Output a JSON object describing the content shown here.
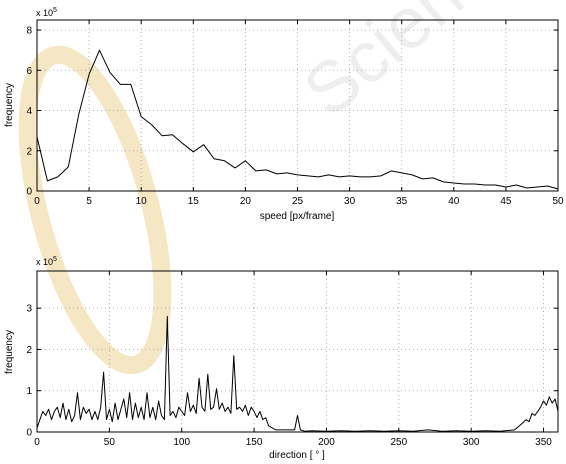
{
  "figure": {
    "background": "#ffffff",
    "line_color": "#000000",
    "grid_color": "#b0b0b0"
  },
  "chart_data": [
    {
      "type": "line",
      "xlabel": "speed [px/frame]",
      "ylabel": "frequency",
      "y_exponent_label": "x 10",
      "y_exponent_power": "5",
      "xlim": [
        0,
        50
      ],
      "ylim": [
        0,
        8.5
      ],
      "xticks": [
        0,
        5,
        10,
        15,
        20,
        25,
        30,
        35,
        40,
        45,
        50
      ],
      "yticks": [
        0,
        2,
        4,
        6,
        8
      ],
      "grid": true,
      "series": [
        {
          "x": [
            0,
            1,
            2,
            3,
            4,
            5,
            6,
            7,
            8,
            9,
            10,
            11,
            12,
            13,
            14,
            15,
            16,
            17,
            18,
            19,
            20,
            21,
            22,
            23,
            24,
            25,
            26,
            27,
            28,
            29,
            30,
            31,
            32,
            33,
            34,
            35,
            36,
            37,
            38,
            39,
            40,
            41,
            42,
            43,
            44,
            45,
            46,
            47,
            48,
            49,
            50
          ],
          "y": [
            2.7,
            0.5,
            0.7,
            1.2,
            3.8,
            5.8,
            7.0,
            5.9,
            5.3,
            5.3,
            3.7,
            3.3,
            2.75,
            2.8,
            2.35,
            1.95,
            2.3,
            1.6,
            1.5,
            1.15,
            1.5,
            1.0,
            1.05,
            0.85,
            0.9,
            0.8,
            0.75,
            0.7,
            0.8,
            0.7,
            0.75,
            0.7,
            0.7,
            0.75,
            1.0,
            0.9,
            0.8,
            0.6,
            0.65,
            0.45,
            0.4,
            0.35,
            0.35,
            0.3,
            0.3,
            0.2,
            0.3,
            0.15,
            0.2,
            0.25,
            0.1
          ]
        }
      ]
    },
    {
      "type": "line",
      "xlabel": "direction [ ° ]",
      "ylabel": "frequency",
      "y_exponent_label": "x 10",
      "y_exponent_power": "5",
      "xlim": [
        0,
        360
      ],
      "ylim": [
        0,
        3.9
      ],
      "xticks": [
        0,
        50,
        100,
        150,
        200,
        250,
        300,
        350
      ],
      "yticks": [
        0,
        1,
        2,
        3
      ],
      "grid": true,
      "series": [
        {
          "x": [
            0,
            2,
            4,
            6,
            8,
            10,
            12,
            14,
            16,
            18,
            20,
            22,
            24,
            26,
            28,
            30,
            32,
            34,
            36,
            38,
            40,
            42,
            44,
            46,
            48,
            50,
            52,
            54,
            56,
            58,
            60,
            62,
            64,
            66,
            68,
            70,
            72,
            74,
            76,
            78,
            80,
            82,
            84,
            86,
            88,
            90,
            92,
            94,
            96,
            98,
            100,
            102,
            104,
            106,
            108,
            110,
            112,
            114,
            116,
            118,
            120,
            122,
            124,
            126,
            128,
            130,
            132,
            134,
            136,
            138,
            140,
            142,
            144,
            146,
            148,
            150,
            152,
            154,
            156,
            158,
            160,
            165,
            170,
            175,
            178,
            180,
            182,
            185,
            190,
            200,
            210,
            220,
            230,
            240,
            250,
            260,
            270,
            280,
            290,
            300,
            310,
            320,
            330,
            335,
            338,
            340,
            342,
            344,
            346,
            348,
            350,
            352,
            354,
            356,
            358,
            360
          ],
          "y": [
            0.1,
            0.3,
            0.5,
            0.4,
            0.55,
            0.3,
            0.5,
            0.6,
            0.35,
            0.7,
            0.3,
            0.55,
            0.25,
            0.4,
            0.95,
            0.3,
            0.6,
            0.45,
            0.55,
            0.3,
            0.5,
            0.3,
            0.6,
            1.45,
            0.3,
            0.55,
            0.25,
            0.7,
            0.3,
            0.55,
            0.8,
            0.35,
            0.95,
            0.3,
            0.7,
            0.35,
            0.6,
            0.3,
            0.95,
            0.35,
            0.6,
            0.3,
            0.75,
            0.4,
            0.3,
            2.8,
            0.4,
            0.5,
            0.35,
            0.6,
            0.5,
            0.4,
            0.95,
            0.5,
            0.65,
            0.45,
            1.3,
            0.6,
            0.5,
            1.4,
            0.55,
            0.6,
            1.05,
            0.55,
            0.7,
            0.5,
            0.6,
            0.45,
            1.85,
            0.55,
            0.6,
            0.5,
            0.65,
            0.4,
            0.6,
            0.5,
            0.35,
            0.5,
            0.3,
            0.35,
            0.15,
            0.05,
            0.05,
            0.05,
            0.05,
            0.4,
            0.05,
            0.02,
            0.03,
            0.02,
            0.03,
            0.02,
            0.03,
            0.02,
            0.03,
            0.02,
            0.05,
            0.02,
            0.03,
            0.02,
            0.03,
            0.02,
            0.05,
            0.2,
            0.3,
            0.25,
            0.45,
            0.4,
            0.5,
            0.6,
            0.75,
            0.65,
            0.85,
            0.7,
            0.8,
            0.5
          ]
        }
      ]
    }
  ]
}
